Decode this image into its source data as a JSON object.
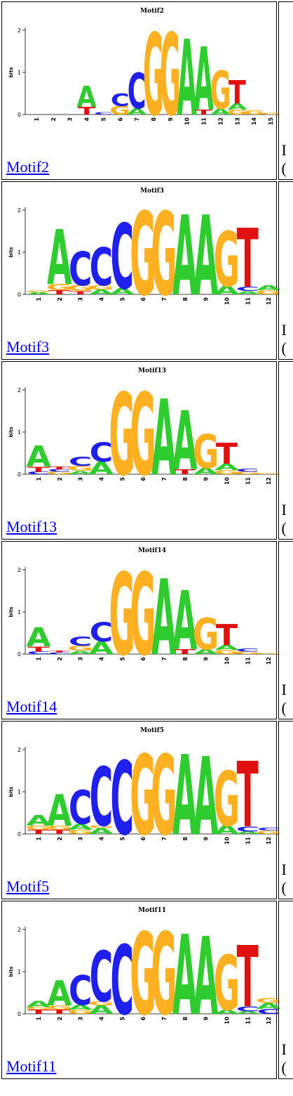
{
  "colors": {
    "A": "#2fcc2f",
    "C": "#1f1fee",
    "G": "#ffb020",
    "T": "#e01010",
    "link": "#0000ee"
  },
  "motifs": [
    {
      "name": "Motif2",
      "title": "Motif2",
      "link_text": "Motif2",
      "cut_l1": "I",
      "cut_l2": "(",
      "positions": [
        [],
        [],
        [],
        [
          [
            "T",
            0.18
          ],
          [
            "A",
            0.5
          ]
        ],
        [
          [
            "C",
            0.05
          ]
        ],
        [
          [
            "G",
            0.2
          ],
          [
            "C",
            0.3
          ]
        ],
        [
          [
            "A",
            0.15
          ],
          [
            "C",
            0.85
          ]
        ],
        [
          [
            "G",
            1.95
          ]
        ],
        [
          [
            "G",
            1.95
          ]
        ],
        [
          [
            "A",
            1.8
          ]
        ],
        [
          [
            "T",
            0.12
          ],
          [
            "A",
            1.5
          ]
        ],
        [
          [
            "A",
            0.14
          ],
          [
            "G",
            0.9
          ]
        ],
        [
          [
            "G",
            0.12
          ],
          [
            "A",
            0.15
          ],
          [
            "T",
            0.55
          ]
        ],
        [
          [
            "G",
            0.1
          ]
        ],
        [
          [
            "G",
            0.04
          ]
        ]
      ]
    },
    {
      "name": "Motif3",
      "title": "Motif3",
      "link_text": "Motif3",
      "cut_l1": "I",
      "cut_l2": "(",
      "positions": [
        [
          [
            "A",
            0.05
          ],
          [
            "G",
            0.04
          ]
        ],
        [
          [
            "T",
            0.1
          ],
          [
            "G",
            0.15
          ],
          [
            "A",
            1.3
          ]
        ],
        [
          [
            "T",
            0.08
          ],
          [
            "G",
            0.14
          ],
          [
            "C",
            0.8
          ]
        ],
        [
          [
            "A",
            0.12
          ],
          [
            "G",
            0.1
          ],
          [
            "C",
            0.9
          ]
        ],
        [
          [
            "A",
            0.15
          ],
          [
            "C",
            1.55
          ]
        ],
        [
          [
            "G",
            1.98
          ]
        ],
        [
          [
            "G",
            1.98
          ]
        ],
        [
          [
            "A",
            1.9
          ]
        ],
        [
          [
            "A",
            1.9
          ]
        ],
        [
          [
            "A",
            0.2
          ],
          [
            "G",
            1.3
          ]
        ],
        [
          [
            "A",
            0.08
          ],
          [
            "C",
            0.1
          ],
          [
            "T",
            1.4
          ]
        ],
        [
          [
            "G",
            0.1
          ],
          [
            "A",
            0.12
          ]
        ]
      ]
    },
    {
      "name": "Motif13",
      "title": "Motif13",
      "link_text": "Motif13",
      "cut_l1": "I",
      "cut_l2": "(",
      "positions": [
        [
          [
            "C",
            0.06
          ],
          [
            "T",
            0.12
          ],
          [
            "A",
            0.5
          ]
        ],
        [
          [
            "G",
            0.06
          ],
          [
            "C",
            0.06
          ],
          [
            "T",
            0.06
          ]
        ],
        [
          [
            "A",
            0.08
          ],
          [
            "G",
            0.12
          ],
          [
            "C",
            0.22
          ]
        ],
        [
          [
            "A",
            0.3
          ],
          [
            "C",
            0.45
          ]
        ],
        [
          [
            "G",
            1.95
          ]
        ],
        [
          [
            "G",
            1.95
          ]
        ],
        [
          [
            "A",
            1.8
          ]
        ],
        [
          [
            "T",
            0.12
          ],
          [
            "A",
            1.4
          ]
        ],
        [
          [
            "A",
            0.15
          ],
          [
            "G",
            0.8
          ]
        ],
        [
          [
            "G",
            0.1
          ],
          [
            "A",
            0.15
          ],
          [
            "T",
            0.5
          ]
        ],
        [
          [
            "G",
            0.06
          ],
          [
            "C",
            0.08
          ]
        ],
        [
          [
            "G",
            0.02
          ]
        ]
      ]
    },
    {
      "name": "Motif14",
      "title": "Motif14",
      "link_text": "Motif14",
      "cut_l1": "I",
      "cut_l2": "(",
      "positions": [
        [
          [
            "C",
            0.06
          ],
          [
            "T",
            0.12
          ],
          [
            "A",
            0.45
          ]
        ],
        [
          [
            "C",
            0.04
          ],
          [
            "T",
            0.04
          ]
        ],
        [
          [
            "A",
            0.08
          ],
          [
            "G",
            0.12
          ],
          [
            "C",
            0.22
          ]
        ],
        [
          [
            "A",
            0.3
          ],
          [
            "C",
            0.45
          ]
        ],
        [
          [
            "G",
            1.95
          ]
        ],
        [
          [
            "G",
            1.95
          ]
        ],
        [
          [
            "A",
            1.8
          ]
        ],
        [
          [
            "T",
            0.12
          ],
          [
            "A",
            1.4
          ]
        ],
        [
          [
            "A",
            0.12
          ],
          [
            "G",
            0.75
          ]
        ],
        [
          [
            "G",
            0.1
          ],
          [
            "A",
            0.12
          ],
          [
            "T",
            0.5
          ]
        ],
        [
          [
            "G",
            0.06
          ],
          [
            "C",
            0.08
          ]
        ],
        [
          [
            "G",
            0.02
          ]
        ]
      ]
    },
    {
      "name": "Motif5",
      "title": "Motif5",
      "link_text": "Motif5",
      "cut_l1": "I",
      "cut_l2": "(",
      "positions": [
        [
          [
            "T",
            0.1
          ],
          [
            "G",
            0.1
          ],
          [
            "A",
            0.25
          ]
        ],
        [
          [
            "T",
            0.1
          ],
          [
            "G",
            0.1
          ],
          [
            "A",
            0.75
          ]
        ],
        [
          [
            "G",
            0.1
          ],
          [
            "A",
            0.14
          ],
          [
            "C",
            0.8
          ]
        ],
        [
          [
            "A",
            0.14
          ],
          [
            "G",
            0.06
          ],
          [
            "C",
            1.4
          ]
        ],
        [
          [
            "C",
            1.75
          ]
        ],
        [
          [
            "G",
            1.9
          ]
        ],
        [
          [
            "G",
            1.9
          ]
        ],
        [
          [
            "A",
            1.9
          ]
        ],
        [
          [
            "A",
            1.85
          ]
        ],
        [
          [
            "A",
            0.2
          ],
          [
            "G",
            1.3
          ]
        ],
        [
          [
            "A",
            0.06
          ],
          [
            "C",
            0.12
          ],
          [
            "T",
            1.55
          ]
        ],
        [
          [
            "G",
            0.08
          ],
          [
            "C",
            0.06
          ]
        ]
      ]
    },
    {
      "name": "Motif11",
      "title": "Motif11",
      "link_text": "Motif11",
      "cut_l1": "I",
      "cut_l2": "(",
      "positions": [
        [
          [
            "T",
            0.1
          ],
          [
            "G",
            0.06
          ],
          [
            "A",
            0.15
          ]
        ],
        [
          [
            "T",
            0.1
          ],
          [
            "G",
            0.1
          ],
          [
            "A",
            0.6
          ]
        ],
        [
          [
            "G",
            0.1
          ],
          [
            "A",
            0.12
          ],
          [
            "C",
            0.7
          ]
        ],
        [
          [
            "A",
            0.2
          ],
          [
            "G",
            0.1
          ],
          [
            "C",
            1.2
          ]
        ],
        [
          [
            "C",
            1.65
          ]
        ],
        [
          [
            "G",
            1.95
          ]
        ],
        [
          [
            "G",
            1.95
          ]
        ],
        [
          [
            "A",
            1.9
          ]
        ],
        [
          [
            "A",
            1.85
          ]
        ],
        [
          [
            "A",
            0.1
          ],
          [
            "G",
            1.3
          ]
        ],
        [
          [
            "A",
            0.06
          ],
          [
            "C",
            0.12
          ],
          [
            "T",
            1.45
          ]
        ],
        [
          [
            "C",
            0.12
          ],
          [
            "A",
            0.14
          ],
          [
            "G",
            0.12
          ]
        ]
      ]
    }
  ]
}
